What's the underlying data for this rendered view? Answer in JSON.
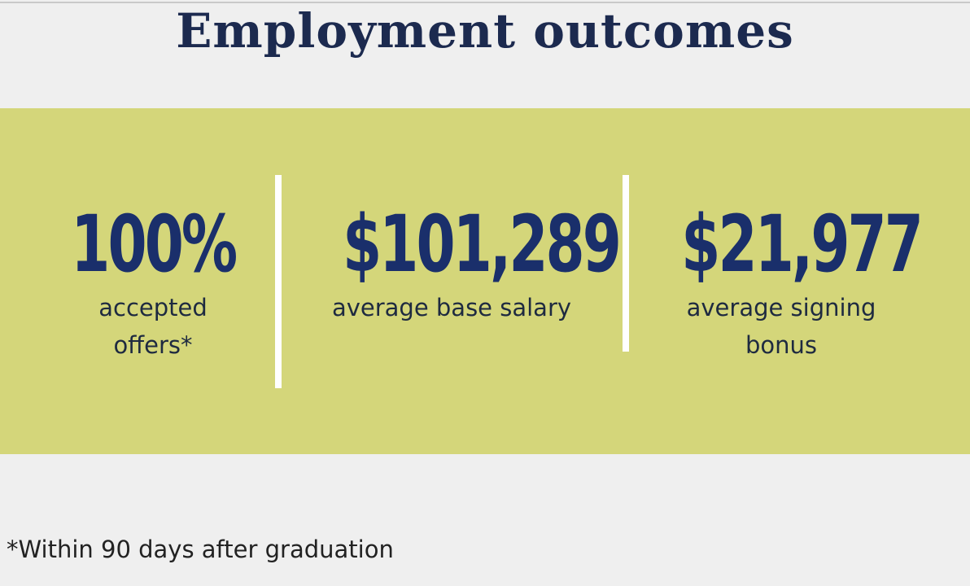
{
  "header": {
    "title": "Employment outcomes"
  },
  "stats": [
    {
      "value": "100%",
      "label": "accepted offers*"
    },
    {
      "value": "$101,289",
      "label": "average base salary"
    },
    {
      "value": "$21,977",
      "label": "average signing bonus"
    }
  ],
  "footnote": "*Within 90 days after graduation"
}
